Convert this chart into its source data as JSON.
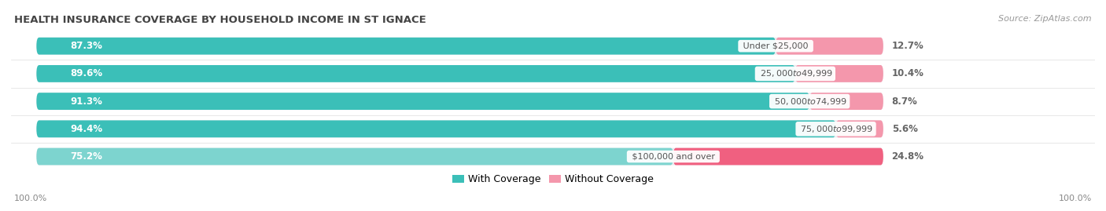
{
  "title": "HEALTH INSURANCE COVERAGE BY HOUSEHOLD INCOME IN ST IGNACE",
  "source": "Source: ZipAtlas.com",
  "categories": [
    "Under $25,000",
    "$25,000 to $49,999",
    "$50,000 to $74,999",
    "$75,000 to $99,999",
    "$100,000 and over"
  ],
  "with_coverage": [
    87.3,
    89.6,
    91.3,
    94.4,
    75.2
  ],
  "without_coverage": [
    12.7,
    10.4,
    8.7,
    5.6,
    24.8
  ],
  "with_color": [
    "#3BBFB8",
    "#3BBFB8",
    "#3BBFB8",
    "#3BBFB8",
    "#7DD4CF"
  ],
  "without_color": [
    "#F497AC",
    "#F497AC",
    "#F497AC",
    "#F497AC",
    "#F06080"
  ],
  "bar_bg_color": "#EBEBF0",
  "title_color": "#555555",
  "source_color": "#999999",
  "label_color": "#FFFFFF",
  "category_color": "#555555",
  "pct_right_color": "#666666",
  "figsize": [
    14.06,
    2.69
  ],
  "dpi": 100,
  "bottom_labels": [
    "100.0%",
    "100.0%"
  ],
  "legend_labels": [
    "With Coverage",
    "Without Coverage"
  ],
  "legend_with_color": "#3BBFB8",
  "legend_without_color": "#F497AC"
}
